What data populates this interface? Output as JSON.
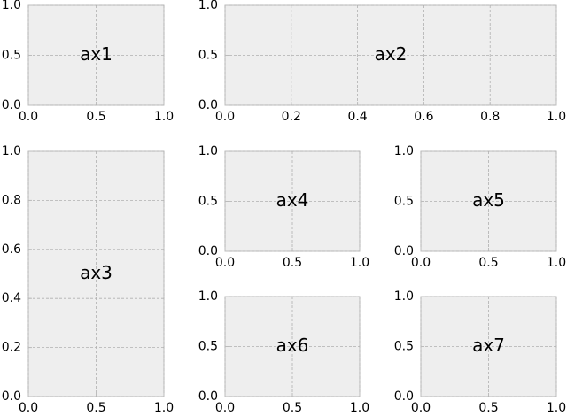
{
  "chart_data": [
    {
      "type": "axes",
      "annotation": "ax1",
      "xlim": [
        0,
        1
      ],
      "ylim": [
        0,
        1
      ],
      "grid": true,
      "xticks": [
        {
          "value": 0,
          "label": "0.0"
        },
        0.5,
        {
          "value": 1,
          "label": "1.0"
        }
      ],
      "yticks": [
        {
          "value": 0,
          "label": "0.0"
        },
        0.5,
        {
          "value": 1,
          "label": "1.0"
        }
      ]
    },
    {
      "type": "axes",
      "annotation": "ax2",
      "xlim": [
        0,
        1
      ],
      "ylim": [
        0,
        1
      ],
      "grid": true,
      "xticks": [
        {
          "value": 0,
          "label": "0.0"
        },
        0.2,
        0.4,
        0.6,
        0.8,
        {
          "value": 1,
          "label": "1.0"
        }
      ],
      "yticks": [
        {
          "value": 0,
          "label": "0.0"
        },
        0.5,
        {
          "value": 1,
          "label": "1.0"
        }
      ]
    },
    {
      "type": "axes",
      "annotation": "ax3",
      "xlim": [
        0,
        1
      ],
      "ylim": [
        0,
        1
      ],
      "grid": true,
      "xticks": [
        {
          "value": 0,
          "label": "0.0"
        },
        0.5,
        {
          "value": 1,
          "label": "1.0"
        }
      ],
      "yticks": [
        {
          "value": 0,
          "label": "0.0"
        },
        0.2,
        0.4,
        0.6,
        0.8,
        {
          "value": 1,
          "label": "1.0"
        }
      ]
    },
    {
      "type": "axes",
      "annotation": "ax4",
      "xlim": [
        0,
        1
      ],
      "ylim": [
        0,
        1
      ],
      "grid": true,
      "xticks": [
        {
          "value": 0,
          "label": "0.0"
        },
        0.5,
        {
          "value": 1,
          "label": "1.0"
        }
      ],
      "yticks": [
        {
          "value": 0,
          "label": "0.0"
        },
        0.5,
        {
          "value": 1,
          "label": "1.0"
        }
      ]
    },
    {
      "type": "axes",
      "annotation": "ax5",
      "xlim": [
        0,
        1
      ],
      "ylim": [
        0,
        1
      ],
      "grid": true,
      "xticks": [
        {
          "value": 0,
          "label": "0.0"
        },
        0.5,
        {
          "value": 1,
          "label": "1.0"
        }
      ],
      "yticks": [
        {
          "value": 0,
          "label": "0.0"
        },
        0.5,
        {
          "value": 1,
          "label": "1.0"
        }
      ]
    },
    {
      "type": "axes",
      "annotation": "ax6",
      "xlim": [
        0,
        1
      ],
      "ylim": [
        0,
        1
      ],
      "grid": true,
      "xticks": [
        {
          "value": 0,
          "label": "0.0"
        },
        0.5,
        {
          "value": 1,
          "label": "1.0"
        }
      ],
      "yticks": [
        {
          "value": 0,
          "label": "0.0"
        },
        0.5,
        {
          "value": 1,
          "label": "1.0"
        }
      ]
    },
    {
      "type": "axes",
      "annotation": "ax7",
      "xlim": [
        0,
        1
      ],
      "ylim": [
        0,
        1
      ],
      "grid": true,
      "xticks": [
        {
          "value": 0,
          "label": "0.0"
        },
        0.5,
        {
          "value": 1,
          "label": "1.0"
        }
      ],
      "yticks": [
        {
          "value": 0,
          "label": "0.0"
        },
        0.5,
        {
          "value": 1,
          "label": "1.0"
        }
      ]
    }
  ]
}
